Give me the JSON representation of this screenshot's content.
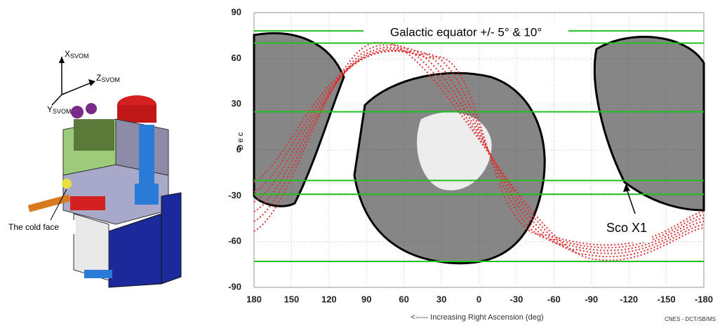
{
  "figure": {
    "satellite": {
      "axes": [
        {
          "letter": "X",
          "subscript": "SVOM"
        },
        {
          "letter": "Z",
          "subscript": "SVOM"
        },
        {
          "letter": "Y",
          "subscript": "SVOM"
        }
      ],
      "callout": "The cold face"
    },
    "plot": {
      "xlim": [
        180,
        -180
      ],
      "ylim": [
        -90,
        90
      ],
      "xticks": [
        180,
        150,
        120,
        90,
        60,
        30,
        0,
        -30,
        -60,
        -90,
        -120,
        -150,
        -180
      ],
      "yticks": [
        90,
        60,
        30,
        0,
        -30,
        -60,
        -90
      ],
      "ylabel": "Dec",
      "xlabel": "<----- Increasing Right Ascension (deg)",
      "credit": "CNES - DCT/SB/MS",
      "band_label": "Galactic equator +/- 5° & 10°",
      "source_label": "Sco X1",
      "band_lines": [
        78,
        70,
        25,
        -20,
        -29,
        -73
      ]
    }
  }
}
